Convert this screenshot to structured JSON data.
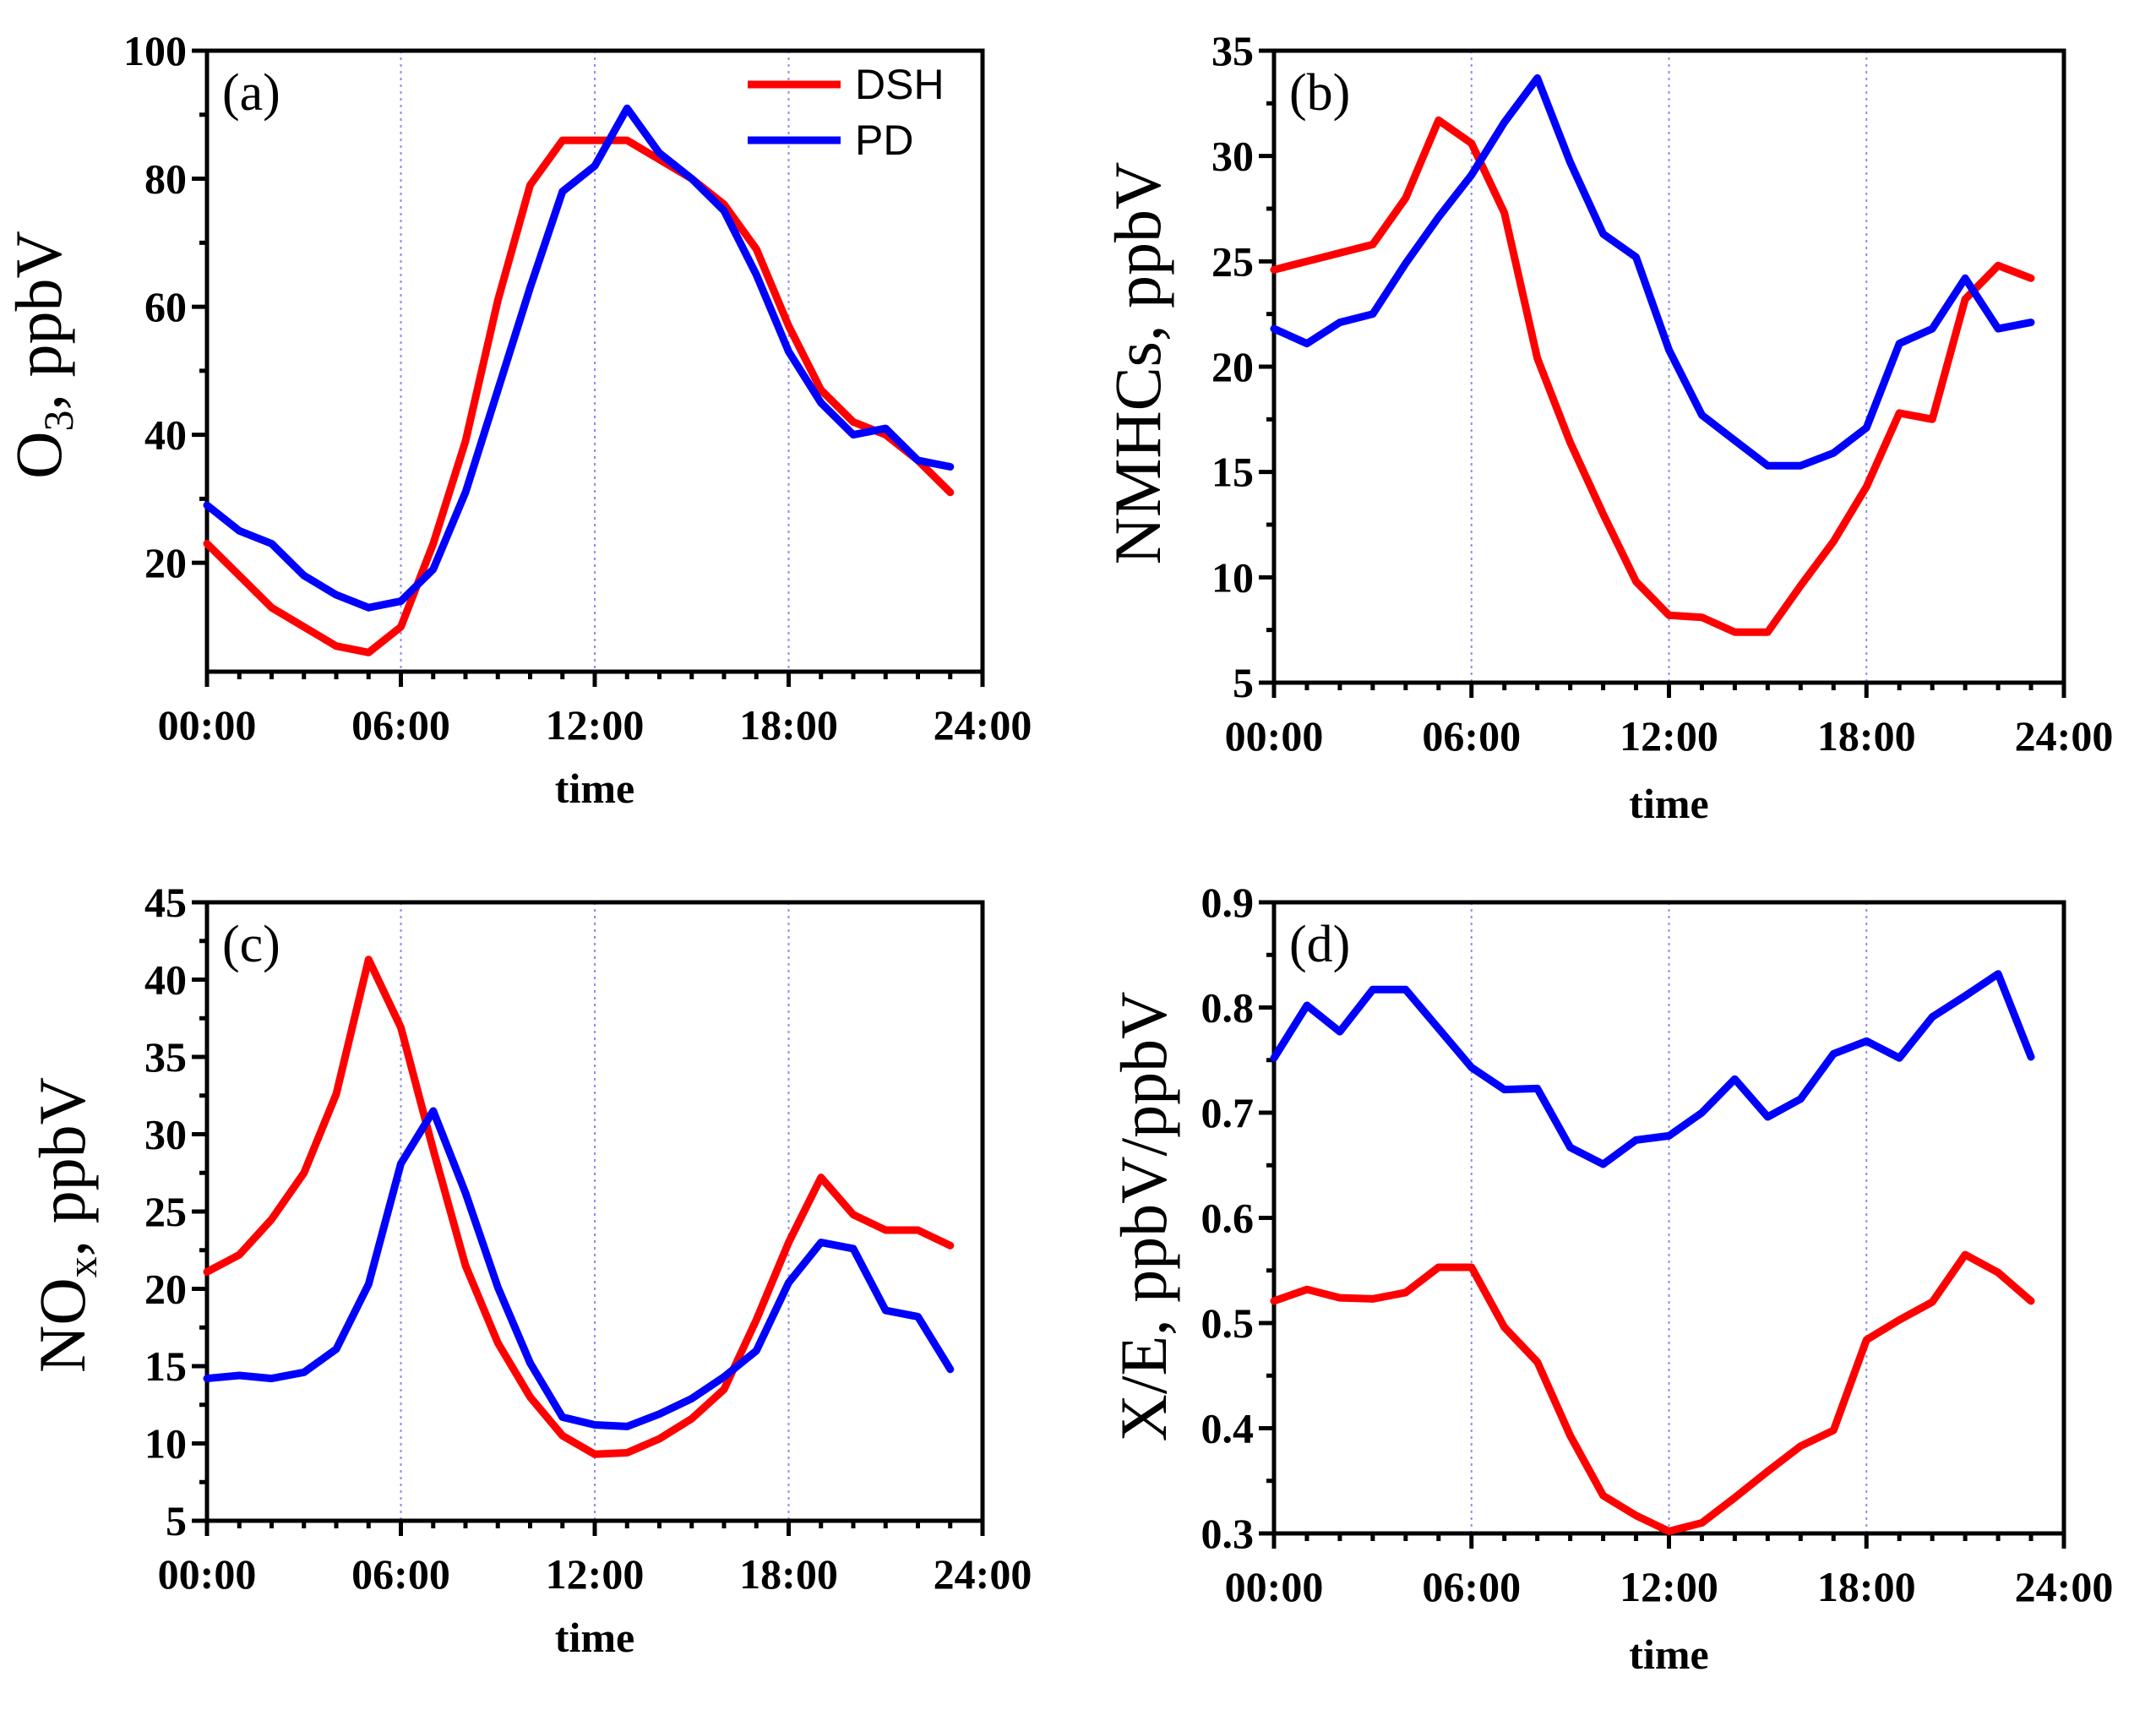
{
  "colors": {
    "DSH": "#ff0000",
    "PD": "#0000ff",
    "grid": "#8c8cf0"
  },
  "chart_data": [
    {
      "id": "a",
      "type": "line",
      "panel_label": "(a)",
      "title": "",
      "xlabel": "time",
      "ylabel_main": "O",
      "ylabel_sub": "3",
      "ylabel_rest": ", ppbV",
      "x_ticks": [
        "00:00",
        "06:00",
        "12:00",
        "18:00",
        "24:00"
      ],
      "xlim": [
        0,
        24
      ],
      "ylim": [
        3,
        100
      ],
      "y_ticks": [
        20,
        40,
        60,
        80,
        100
      ],
      "vgrid_x": [
        6,
        12,
        18
      ],
      "legend": {
        "position": "top-right",
        "entries": [
          "DSH",
          "PD"
        ]
      },
      "x": [
        0,
        1,
        2,
        3,
        4,
        5,
        6,
        7,
        8,
        9,
        10,
        11,
        12,
        13,
        14,
        15,
        16,
        17,
        18,
        19,
        20,
        21,
        22,
        23
      ],
      "series": [
        {
          "name": "DSH",
          "values": [
            23,
            18,
            13,
            10,
            7,
            6,
            10,
            23,
            39,
            61,
            79,
            86,
            86,
            86,
            83,
            80,
            76,
            69,
            57,
            47,
            42,
            40,
            36,
            31
          ]
        },
        {
          "name": "PD",
          "values": [
            29,
            25,
            23,
            18,
            15,
            13,
            14,
            19,
            31,
            47,
            63,
            78,
            82,
            91,
            84,
            80,
            75,
            65,
            53,
            45,
            40,
            41,
            36,
            35
          ]
        }
      ]
    },
    {
      "id": "b",
      "type": "line",
      "panel_label": "(b)",
      "title": "",
      "xlabel": "time",
      "ylabel_main": "NMHCs, ppbV",
      "ylabel_sub": "",
      "ylabel_rest": "",
      "x_ticks": [
        "00:00",
        "06:00",
        "12:00",
        "18:00",
        "24:00"
      ],
      "xlim": [
        0,
        24
      ],
      "ylim": [
        5,
        35
      ],
      "y_ticks": [
        5,
        10,
        15,
        20,
        25,
        30,
        35
      ],
      "vgrid_x": [
        6,
        12,
        18
      ],
      "x": [
        0,
        1,
        2,
        3,
        4,
        5,
        6,
        7,
        8,
        9,
        10,
        11,
        12,
        13,
        14,
        15,
        16,
        17,
        18,
        19,
        20,
        21,
        22,
        23
      ],
      "series": [
        {
          "name": "DSH",
          "values": [
            24.6,
            25.0,
            25.4,
            25.8,
            28.0,
            31.7,
            30.6,
            27.3,
            20.4,
            16.4,
            13.0,
            9.8,
            8.2,
            8.1,
            7.4,
            7.4,
            9.6,
            11.7,
            14.3,
            17.8,
            17.5,
            23.2,
            24.8,
            24.2
          ]
        },
        {
          "name": "PD",
          "values": [
            21.8,
            21.1,
            22.1,
            22.5,
            24.9,
            27.1,
            29.1,
            31.6,
            33.7,
            29.7,
            26.3,
            25.2,
            20.8,
            17.7,
            16.5,
            15.3,
            15.3,
            15.9,
            17.1,
            21.1,
            21.8,
            24.2,
            21.8,
            22.1
          ]
        }
      ]
    },
    {
      "id": "c",
      "type": "line",
      "panel_label": "(c)",
      "title": "",
      "xlabel": "time",
      "ylabel_main": "NO",
      "ylabel_sub": "x",
      "ylabel_rest": ", ppbV",
      "x_ticks": [
        "00:00",
        "06:00",
        "12:00",
        "18:00",
        "24:00"
      ],
      "xlim": [
        0,
        24
      ],
      "ylim": [
        5,
        45
      ],
      "y_ticks": [
        5,
        10,
        15,
        20,
        25,
        30,
        35,
        40,
        45
      ],
      "vgrid_x": [
        6,
        12,
        18
      ],
      "x": [
        0,
        1,
        2,
        3,
        4,
        5,
        6,
        7,
        8,
        9,
        10,
        11,
        12,
        13,
        14,
        15,
        16,
        17,
        18,
        19,
        20,
        21,
        22,
        23
      ],
      "series": [
        {
          "name": "DSH",
          "values": [
            21.1,
            22.2,
            24.5,
            27.5,
            32.6,
            41.3,
            36.9,
            29.0,
            21.5,
            16.5,
            13.0,
            10.5,
            9.3,
            9.4,
            10.3,
            11.6,
            13.5,
            18.0,
            23.0,
            27.2,
            24.8,
            23.8,
            23.8,
            22.8
          ]
        },
        {
          "name": "PD",
          "values": [
            14.2,
            14.4,
            14.2,
            14.6,
            16.1,
            20.3,
            28.1,
            31.5,
            26.2,
            20.1,
            15.2,
            11.7,
            11.2,
            11.1,
            11.9,
            12.9,
            14.3,
            16.0,
            20.4,
            23.0,
            22.6,
            18.6,
            18.2,
            14.8
          ]
        }
      ]
    },
    {
      "id": "d",
      "type": "line",
      "panel_label": "(d)",
      "title": "",
      "xlabel": "time",
      "ylabel_main": "X/E, ppbV/ppbV",
      "ylabel_sub": "",
      "ylabel_rest": "",
      "x_ticks": [
        "00:00",
        "06:00",
        "12:00",
        "18:00",
        "24:00"
      ],
      "xlim": [
        0,
        24
      ],
      "ylim": [
        0.3,
        0.9
      ],
      "y_ticks": [
        0.3,
        0.4,
        0.5,
        0.6,
        0.7,
        0.8,
        0.9
      ],
      "vgrid_x": [
        6,
        12,
        18
      ],
      "x": [
        0,
        1,
        2,
        3,
        4,
        5,
        6,
        7,
        8,
        9,
        10,
        11,
        12,
        13,
        14,
        15,
        16,
        17,
        18,
        19,
        20,
        21,
        22,
        23
      ],
      "series": [
        {
          "name": "DSH",
          "values": [
            0.521,
            0.532,
            0.524,
            0.523,
            0.529,
            0.553,
            0.553,
            0.496,
            0.463,
            0.393,
            0.336,
            0.317,
            0.302,
            0.31,
            0.334,
            0.359,
            0.383,
            0.398,
            0.484,
            0.503,
            0.52,
            0.565,
            0.548,
            0.521
          ]
        },
        {
          "name": "PD",
          "values": [
            0.752,
            0.802,
            0.777,
            0.817,
            0.817,
            0.78,
            0.743,
            0.722,
            0.723,
            0.667,
            0.651,
            0.674,
            0.678,
            0.7,
            0.732,
            0.696,
            0.713,
            0.756,
            0.768,
            0.752,
            0.791,
            0.811,
            0.832,
            0.753
          ]
        }
      ]
    }
  ]
}
